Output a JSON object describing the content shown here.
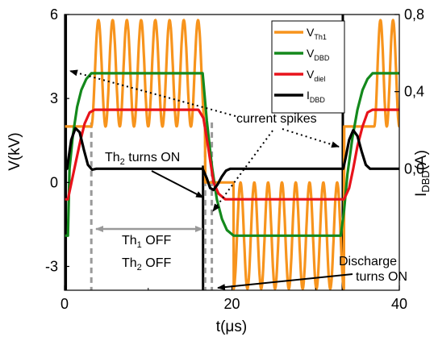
{
  "chart_data": {
    "type": "line",
    "xlabel": "t(μs)",
    "ylabel_left": "V(kV)",
    "ylabel_right_main": "I",
    "ylabel_right_sub": "DBD",
    "ylabel_right_unit": "(A)",
    "xlim": [
      0,
      40
    ],
    "ylim_left": [
      -3.85,
      6
    ],
    "ylim_right": [
      -0.63,
      0.8
    ],
    "xticks": [
      0,
      20,
      40
    ],
    "xtick_labels": [
      "0",
      "20",
      "40"
    ],
    "yticks_left": [
      -3,
      0,
      3,
      6
    ],
    "ytick_labels_left": [
      "-3",
      "0",
      "3",
      "6"
    ],
    "yticks_right": [
      0.0,
      0.4,
      0.8
    ],
    "ytick_labels_right": [
      "0,0",
      "0,4",
      "0,8"
    ],
    "legend_position": "top-right",
    "series": [
      {
        "name": "V",
        "name_sub": "Th1",
        "color": "#f7941d",
        "axis": "left",
        "x": [
          -0.5,
          3.2,
          3.2,
          16.8,
          16.8,
          20.2,
          20.2,
          33.4,
          33.4,
          37.0
        ],
        "y": [
          2.0,
          2.0,
          3.9,
          3.9,
          0.0,
          0.0,
          -1.9,
          -1.9,
          2.0,
          2.0
        ],
        "oscillation": {
          "segments": [
            [
              3.2,
              16.8,
              3.9,
              1.9,
              8
            ],
            [
              20.2,
              33.4,
              -1.9,
              1.9,
              8
            ],
            [
              37.0,
              40.0,
              3.9,
              1.9,
              2
            ]
          ]
        }
      },
      {
        "name": "V",
        "name_sub": "DBD",
        "color": "#14891c",
        "axis": "left",
        "x": [
          -0.5,
          0.4,
          0.6,
          1.0,
          1.5,
          2.0,
          2.6,
          3.2,
          16.5,
          17.0,
          17.6,
          18.2,
          18.8,
          19.4,
          20.2,
          33.0,
          33.4,
          33.8,
          34.4,
          35.0,
          35.6,
          36.2,
          36.8,
          40.0
        ],
        "y": [
          -1.9,
          -1.9,
          0.5,
          1.7,
          2.7,
          3.3,
          3.7,
          3.9,
          3.9,
          2.2,
          0.6,
          -0.6,
          -1.3,
          -1.7,
          -1.9,
          -1.9,
          -1.0,
          0.3,
          1.6,
          2.6,
          3.3,
          3.7,
          3.9,
          3.9
        ]
      },
      {
        "name": "V",
        "name_sub": "diel",
        "color": "#e8131b",
        "axis": "left",
        "x": [
          -0.5,
          0.4,
          0.9,
          1.4,
          1.9,
          2.4,
          3.0,
          3.6,
          16.0,
          16.6,
          17.2,
          17.8,
          18.4,
          19.2,
          20.2,
          33.4,
          34.0,
          34.5,
          35.0,
          35.6,
          36.2,
          36.8,
          40.0
        ],
        "y": [
          -0.6,
          -0.6,
          0.1,
          0.8,
          1.5,
          2.1,
          2.5,
          2.6,
          2.6,
          2.3,
          1.2,
          0.0,
          -0.4,
          -0.6,
          -0.6,
          -0.6,
          -0.2,
          0.5,
          1.3,
          2.0,
          2.5,
          2.6,
          2.6
        ]
      },
      {
        "name": "I",
        "name_sub": "DBD",
        "color": "#000000",
        "axis": "right",
        "x": [
          -0.5,
          0.3,
          0.8,
          1.3,
          1.8,
          2.3,
          2.8,
          3.3,
          3.8,
          16.5,
          16.7,
          17.0,
          17.4,
          17.8,
          18.3,
          18.8,
          19.3,
          19.8,
          20.3,
          33.3,
          33.6,
          34.0,
          34.5,
          35.0,
          35.5,
          36.0,
          36.5,
          40.0
        ],
        "y": [
          -0.02,
          0.0,
          0.15,
          0.21,
          0.19,
          0.1,
          0.02,
          -0.005,
          0.0,
          0.0,
          -0.02,
          -0.05,
          -0.1,
          -0.11,
          -0.08,
          -0.04,
          -0.01,
          0.0,
          0.0,
          0.0,
          0.06,
          0.15,
          0.2,
          0.17,
          0.09,
          0.02,
          0.0,
          0.0
        ]
      }
    ],
    "vertical_lines": [
      {
        "x": 0.15,
        "style": "solid",
        "width": 3
      },
      {
        "x": 33.25,
        "style": "solid",
        "width": 3
      },
      {
        "x": 16.55,
        "style": "solid",
        "width": 3
      },
      {
        "x": 3.2,
        "style": "dashed"
      },
      {
        "x": 16.8,
        "style": "dashed"
      },
      {
        "x": 17.6,
        "style": "dashed"
      }
    ],
    "annotations": {
      "current_spikes": "current spikes",
      "th2_on_pre": "Th",
      "th2_on_sub": "2",
      "th2_on_post": " turns ON",
      "th1_off_pre": "Th",
      "th1_off_sub": "1",
      "th1_off_post": " OFF",
      "th2_off_pre": "Th",
      "th2_off_sub": "2",
      "th2_off_post": " OFF",
      "discharge_1": "Discharge",
      "discharge_2": "turns ON"
    }
  }
}
